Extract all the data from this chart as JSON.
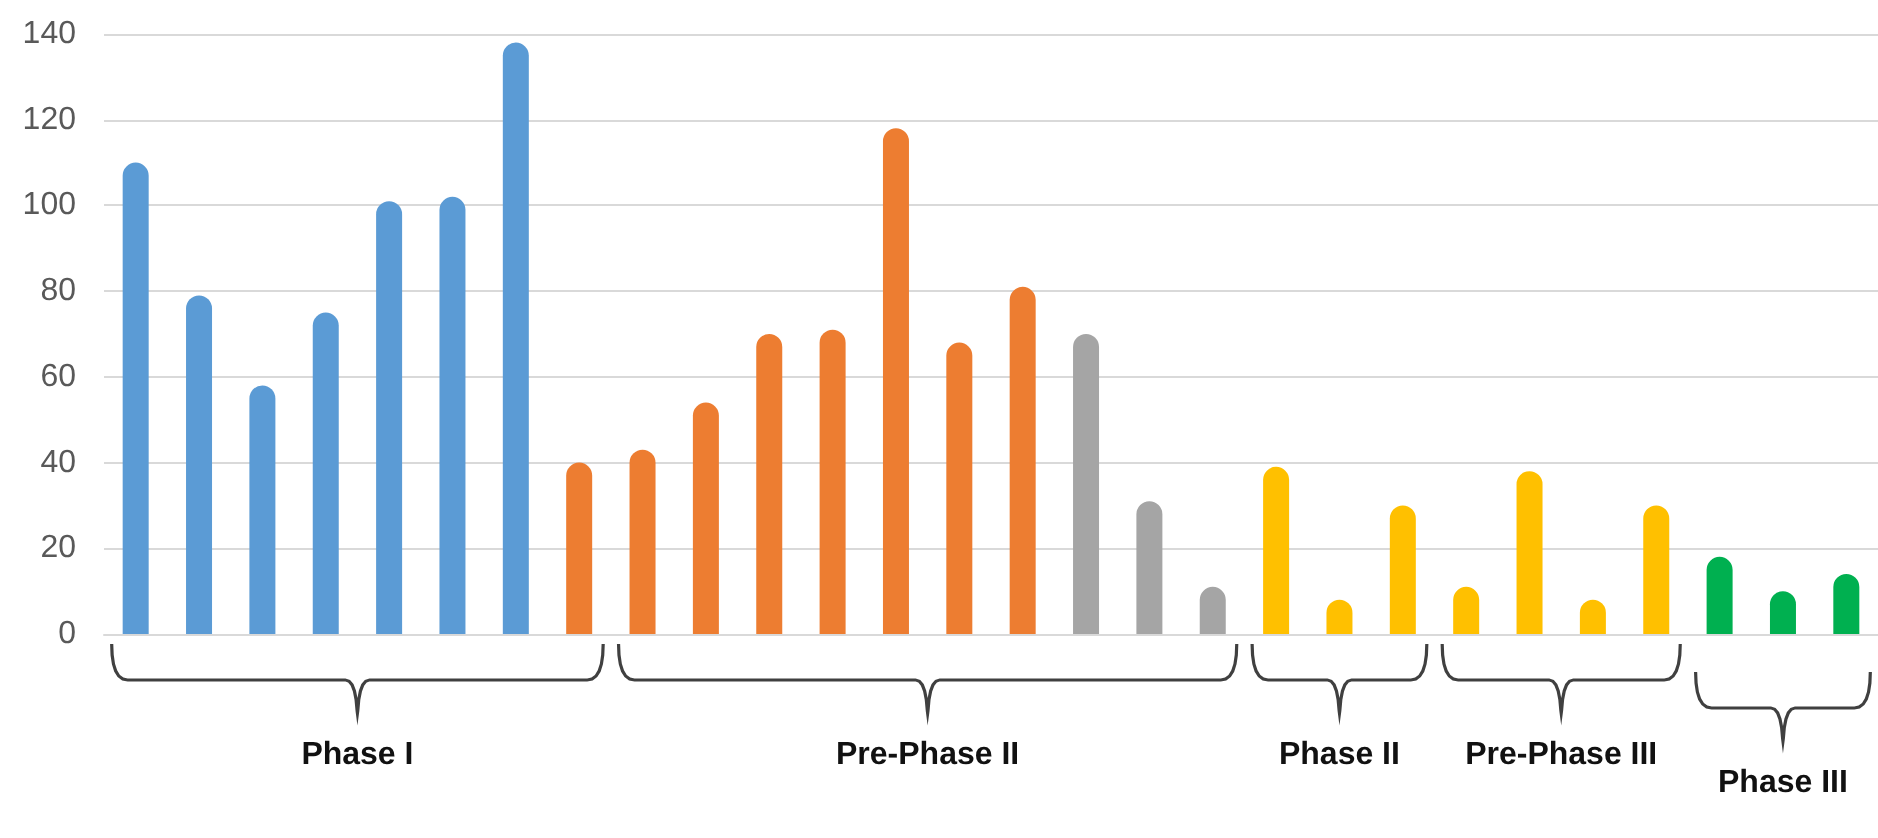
{
  "chart_data": {
    "type": "bar",
    "categories": [
      null,
      null,
      null,
      null,
      null,
      null,
      null,
      null,
      null,
      null,
      null,
      null,
      null,
      null,
      null,
      null,
      null,
      null,
      null,
      null,
      null,
      null,
      null,
      null,
      null,
      null,
      null,
      null
    ],
    "values": [
      110,
      79,
      58,
      75,
      101,
      102,
      138,
      40,
      43,
      54,
      70,
      71,
      118,
      68,
      81,
      70,
      31,
      11,
      39,
      8,
      30,
      11,
      38,
      8,
      30,
      18,
      10,
      14
    ],
    "colors": [
      "#5b9bd5",
      "#5b9bd5",
      "#5b9bd5",
      "#5b9bd5",
      "#5b9bd5",
      "#5b9bd5",
      "#5b9bd5",
      "#ed7d31",
      "#ed7d31",
      "#ed7d31",
      "#ed7d31",
      "#ed7d31",
      "#ed7d31",
      "#ed7d31",
      "#ed7d31",
      "#a5a5a5",
      "#a5a5a5",
      "#a5a5a5",
      "#ffc000",
      "#ffc000",
      "#ffc000",
      "#ffc000",
      "#ffc000",
      "#ffc000",
      "#ffc000",
      "#00b050",
      "#00b050",
      "#00b050"
    ],
    "ylim": [
      0,
      140
    ],
    "yticks": [
      0,
      20,
      40,
      60,
      80,
      100,
      120,
      140
    ],
    "grid": "y",
    "annotations": [
      "Phase I",
      "Pre-Phase II",
      "Phase II",
      "Pre-Phase III",
      "Phase III"
    ]
  }
}
